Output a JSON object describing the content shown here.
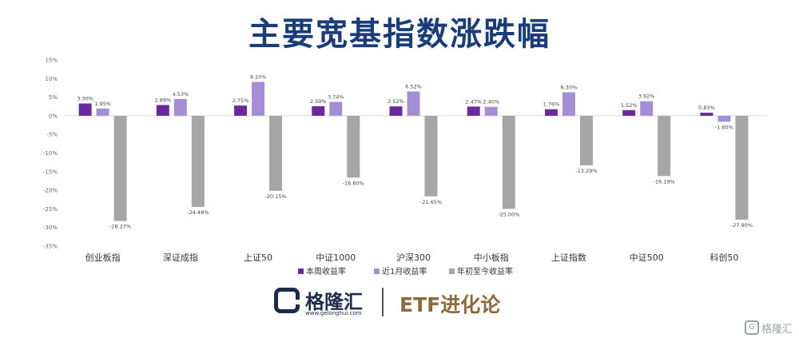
{
  "title": "主要宽基指数涨跌幅",
  "chart_data": {
    "type": "bar",
    "categories": [
      "创业板指",
      "深证成指",
      "上证50",
      "中证1000",
      "沪深300",
      "中小板指",
      "上证指数",
      "中证500",
      "科创50"
    ],
    "series": [
      {
        "name": "本周收益率",
        "color": "#6a2a9e",
        "values": [
          3.3,
          2.89,
          2.75,
          2.59,
          2.52,
          2.47,
          1.76,
          1.52,
          0.83
        ],
        "labels": [
          "3.30%",
          "2.89%",
          "2.75%",
          "2.59%",
          "2.52%",
          "2.47%",
          "1.76%",
          "1.52%",
          "0.83%"
        ]
      },
      {
        "name": "近1月收益率",
        "color": "#a48fd6",
        "values": [
          1.95,
          4.53,
          9.1,
          3.74,
          6.52,
          2.4,
          6.3,
          3.92,
          -1.6
        ],
        "labels": [
          "1.95%",
          "4.53%",
          "9.10%",
          "3.74%",
          "6.52%",
          "2.40%",
          "6.30%",
          "3.92%",
          "-1.60%"
        ]
      },
      {
        "name": "年初至今收益率",
        "color": "#a6a6a6",
        "values": [
          -28.27,
          -24.48,
          -20.15,
          -16.6,
          -21.65,
          -25.0,
          -13.29,
          -16.19,
          -27.9
        ],
        "labels": [
          "-28.27%",
          "-24.48%",
          "-20.15%",
          "-16.60%",
          "-21.65%",
          "-25.00%",
          "-13.29%",
          "-16.19%",
          "-27.90%"
        ]
      }
    ],
    "y_ticks": [
      "15%",
      "10%",
      "5%",
      "0%",
      "-5%",
      "-10%",
      "-15%",
      "-20%",
      "-25%",
      "-30%",
      "-35%"
    ],
    "ylim": [
      -35,
      15
    ],
    "legend_position": "bottom",
    "grid": false
  },
  "footer": {
    "brand": "格隆汇",
    "brand_url": "www.gelonghui.com",
    "partner": "ETF进化论"
  },
  "watermark": {
    "icon_glyph": "G",
    "text": "格隆汇"
  }
}
